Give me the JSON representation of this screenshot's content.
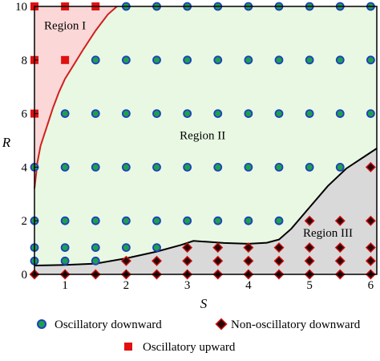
{
  "chart_data": {
    "type": "scatter",
    "xlabel": "S",
    "ylabel": "R",
    "xlim": [
      0.5,
      6.1
    ],
    "ylim": [
      0,
      10
    ],
    "x_ticks": [
      "1",
      "2",
      "3",
      "4",
      "5",
      "6"
    ],
    "y_ticks": [
      "0",
      "2",
      "4",
      "6",
      "8",
      "10"
    ],
    "grid": false,
    "legend_position": "bottom",
    "colors": {
      "region_1_fill": "#fbd7d7",
      "region_2_fill": "#e8f8e3",
      "region_3_fill": "#d9d9d9",
      "upper_boundary": "#d02020",
      "lower_boundary": "#000000",
      "oscillatory_downward_fill": "#1ca14a",
      "oscillatory_downward_edge": "#1f3fbf",
      "non_oscillatory_downward_fill": "#2b0707",
      "non_oscillatory_downward_edge": "#d01010",
      "oscillatory_upward": "#e01010"
    },
    "regions": [
      {
        "label": "Region I",
        "x": 1.0,
        "y": 9.3
      },
      {
        "label": "Region II",
        "x": 3.25,
        "y": 5.2
      },
      {
        "label": "Region III",
        "x": 5.3,
        "y": 1.55
      }
    ],
    "boundaries": {
      "upper": [
        [
          0.5,
          3.2
        ],
        [
          0.55,
          4.2
        ],
        [
          0.6,
          4.8
        ],
        [
          0.7,
          5.5
        ],
        [
          0.8,
          6.2
        ],
        [
          0.9,
          6.8
        ],
        [
          1.0,
          7.3
        ],
        [
          1.15,
          7.85
        ],
        [
          1.3,
          8.4
        ],
        [
          1.5,
          9.1
        ],
        [
          1.7,
          9.7
        ],
        [
          1.85,
          10.0
        ]
      ],
      "lower": [
        [
          0.5,
          0.33
        ],
        [
          1.0,
          0.35
        ],
        [
          1.5,
          0.4
        ],
        [
          2.0,
          0.6
        ],
        [
          2.5,
          0.85
        ],
        [
          2.9,
          1.1
        ],
        [
          3.1,
          1.25
        ],
        [
          3.3,
          1.22
        ],
        [
          3.6,
          1.17
        ],
        [
          4.0,
          1.14
        ],
        [
          4.3,
          1.18
        ],
        [
          4.5,
          1.3
        ],
        [
          4.7,
          1.7
        ],
        [
          5.0,
          2.5
        ],
        [
          5.3,
          3.3
        ],
        [
          5.6,
          3.95
        ],
        [
          5.9,
          4.4
        ],
        [
          6.1,
          4.7
        ]
      ]
    },
    "series": [
      {
        "name": "Oscillatory downward",
        "marker": "circle",
        "points": [
          [
            0.5,
            0.5
          ],
          [
            0.5,
            1
          ],
          [
            0.5,
            2
          ],
          [
            0.5,
            4
          ],
          [
            1,
            0.5
          ],
          [
            1,
            1
          ],
          [
            1,
            2
          ],
          [
            1,
            4
          ],
          [
            1,
            6
          ],
          [
            1.5,
            0.5
          ],
          [
            1.5,
            1
          ],
          [
            1.5,
            2
          ],
          [
            1.5,
            4
          ],
          [
            1.5,
            6
          ],
          [
            1.5,
            8
          ],
          [
            2,
            1
          ],
          [
            2,
            2
          ],
          [
            2,
            4
          ],
          [
            2,
            6
          ],
          [
            2,
            8
          ],
          [
            2,
            10
          ],
          [
            2.5,
            1
          ],
          [
            2.5,
            2
          ],
          [
            2.5,
            4
          ],
          [
            2.5,
            6
          ],
          [
            2.5,
            8
          ],
          [
            2.5,
            10
          ],
          [
            3,
            2
          ],
          [
            3,
            4
          ],
          [
            3,
            6
          ],
          [
            3,
            8
          ],
          [
            3,
            10
          ],
          [
            3.5,
            2
          ],
          [
            3.5,
            4
          ],
          [
            3.5,
            6
          ],
          [
            3.5,
            8
          ],
          [
            3.5,
            10
          ],
          [
            4,
            2
          ],
          [
            4,
            4
          ],
          [
            4,
            6
          ],
          [
            4,
            8
          ],
          [
            4,
            10
          ],
          [
            4.5,
            2
          ],
          [
            4.5,
            4
          ],
          [
            4.5,
            6
          ],
          [
            4.5,
            8
          ],
          [
            4.5,
            10
          ],
          [
            5,
            4
          ],
          [
            5,
            6
          ],
          [
            5,
            8
          ],
          [
            5,
            10
          ],
          [
            5.5,
            4
          ],
          [
            5.5,
            6
          ],
          [
            5.5,
            8
          ],
          [
            5.5,
            10
          ],
          [
            6,
            6
          ],
          [
            6,
            8
          ],
          [
            6,
            10
          ]
        ]
      },
      {
        "name": "Non-oscillatory downward",
        "marker": "diamond",
        "points": [
          [
            0.5,
            0
          ],
          [
            1,
            0
          ],
          [
            1.5,
            0
          ],
          [
            2,
            0
          ],
          [
            2,
            0.5
          ],
          [
            2.5,
            0
          ],
          [
            2.5,
            0.5
          ],
          [
            3,
            0
          ],
          [
            3,
            0.5
          ],
          [
            3,
            1
          ],
          [
            3.5,
            0
          ],
          [
            3.5,
            0.5
          ],
          [
            3.5,
            1
          ],
          [
            4,
            0
          ],
          [
            4,
            0.5
          ],
          [
            4,
            1
          ],
          [
            4.5,
            0
          ],
          [
            4.5,
            0.5
          ],
          [
            4.5,
            1
          ],
          [
            5,
            0
          ],
          [
            5,
            0.5
          ],
          [
            5,
            1
          ],
          [
            5,
            2
          ],
          [
            5.5,
            0
          ],
          [
            5.5,
            0.5
          ],
          [
            5.5,
            1
          ],
          [
            5.5,
            2
          ],
          [
            6,
            0
          ],
          [
            6,
            0.5
          ],
          [
            6,
            1
          ],
          [
            6,
            2
          ],
          [
            6,
            4
          ]
        ]
      },
      {
        "name": "Oscillatory upward",
        "marker": "square",
        "points": [
          [
            0.5,
            6
          ],
          [
            0.5,
            8
          ],
          [
            0.5,
            10
          ],
          [
            1,
            8
          ],
          [
            1,
            10
          ],
          [
            1.5,
            10
          ]
        ]
      }
    ]
  }
}
